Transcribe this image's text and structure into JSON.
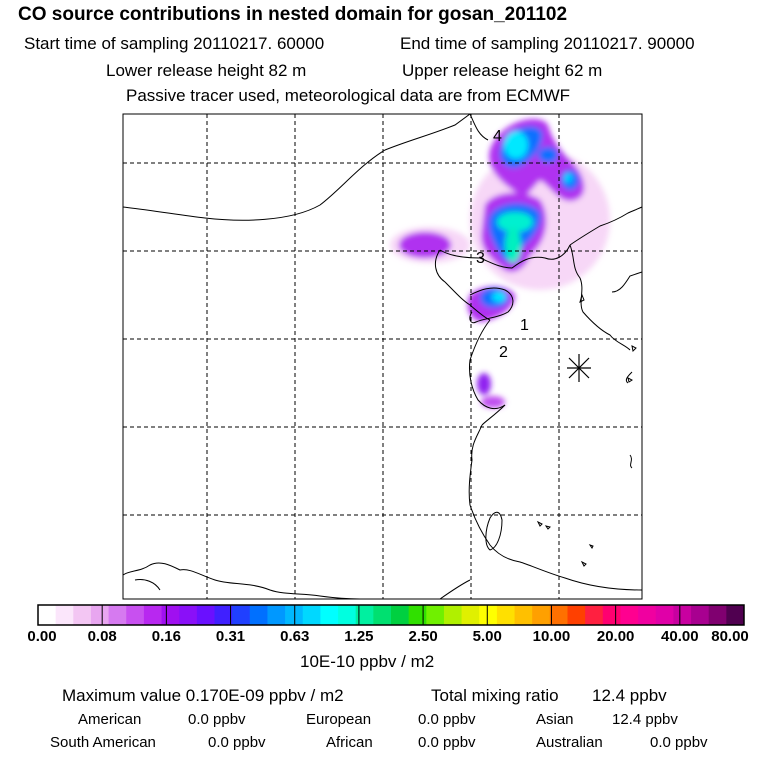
{
  "header": {
    "title": "CO  source contributions in nested domain for gosan_201102",
    "start_time": "Start time of sampling 20110217. 60000",
    "end_time": "End time of sampling 20110217. 90000",
    "lower_height": "Lower release height   82 m",
    "upper_height": "Upper release height   62 m",
    "tracer_note": "Passive tracer used, meteorological data are from ECMWF"
  },
  "map": {
    "markers": [
      {
        "label": "4"
      },
      {
        "label": "3"
      },
      {
        "label": "1"
      },
      {
        "label": "2"
      }
    ],
    "receptor_icon": "asterisk-icon"
  },
  "colorbar": {
    "tick_labels": [
      "0.00",
      "0.08",
      "0.16",
      "0.31",
      "0.63",
      "1.25",
      "2.50",
      "5.00",
      "10.00",
      "20.00",
      "40.00",
      "80.00"
    ],
    "colors": [
      "#ffffff",
      "#fbe6fb",
      "#f3c6f3",
      "#e8a6f0",
      "#d67af0",
      "#c850f0",
      "#b828f0",
      "#a010f0",
      "#8a10f8",
      "#6a10ff",
      "#4020ff",
      "#2040ff",
      "#0070ff",
      "#0098ff",
      "#00b8ff",
      "#00d8ff",
      "#00ffff",
      "#00ffe0",
      "#00f0a0",
      "#00e070",
      "#00d040",
      "#30e000",
      "#70f000",
      "#b0f000",
      "#e0f000",
      "#ffff00",
      "#ffe000",
      "#ffc000",
      "#ffa000",
      "#ff7000",
      "#ff4000",
      "#ff2040",
      "#ff0070",
      "#ff0090",
      "#f000a0",
      "#e000a8",
      "#c800a0",
      "#a80090",
      "#800070",
      "#500050"
    ],
    "unit": "10E-10 ppbv / m2"
  },
  "summary": {
    "max_label": "Maximum value  0.170E-09 ppbv / m2",
    "total_label": "Total mixing ratio",
    "total_value": "12.4 ppbv",
    "regions": [
      {
        "name": "American",
        "value": "0.0 ppbv"
      },
      {
        "name": "European",
        "value": "0.0 ppbv"
      },
      {
        "name": "Asian",
        "value": "12.4 ppbv"
      },
      {
        "name": "South American",
        "value": "0.0 ppbv"
      },
      {
        "name": "African",
        "value": "0.0 ppbv"
      },
      {
        "name": "Australian",
        "value": "0.0 ppbv"
      }
    ]
  }
}
